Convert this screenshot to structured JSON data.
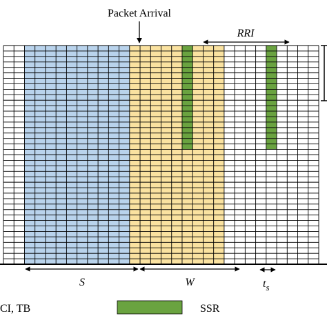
{
  "annotations": {
    "packet_arrival": "Packet Arrival",
    "rri": "RRI",
    "s": "S",
    "w": "W",
    "ts_main": "t",
    "ts_sub": "s"
  },
  "legend": {
    "partial_label": "CI, TB",
    "ssr_label": "SSR"
  },
  "grid": {
    "columns": 30,
    "rows": 40,
    "sensing_window_columns": [
      2,
      11
    ],
    "selection_window_columns": [
      12,
      20
    ],
    "ssr_columns": [
      17,
      25
    ],
    "ssr_rows": [
      0,
      18
    ]
  },
  "colors": {
    "sensing_fill": "#b9d3ec",
    "selection_fill": "#fae2a0",
    "ssr_fill": "#6aa340",
    "grid_line": "#000000"
  }
}
